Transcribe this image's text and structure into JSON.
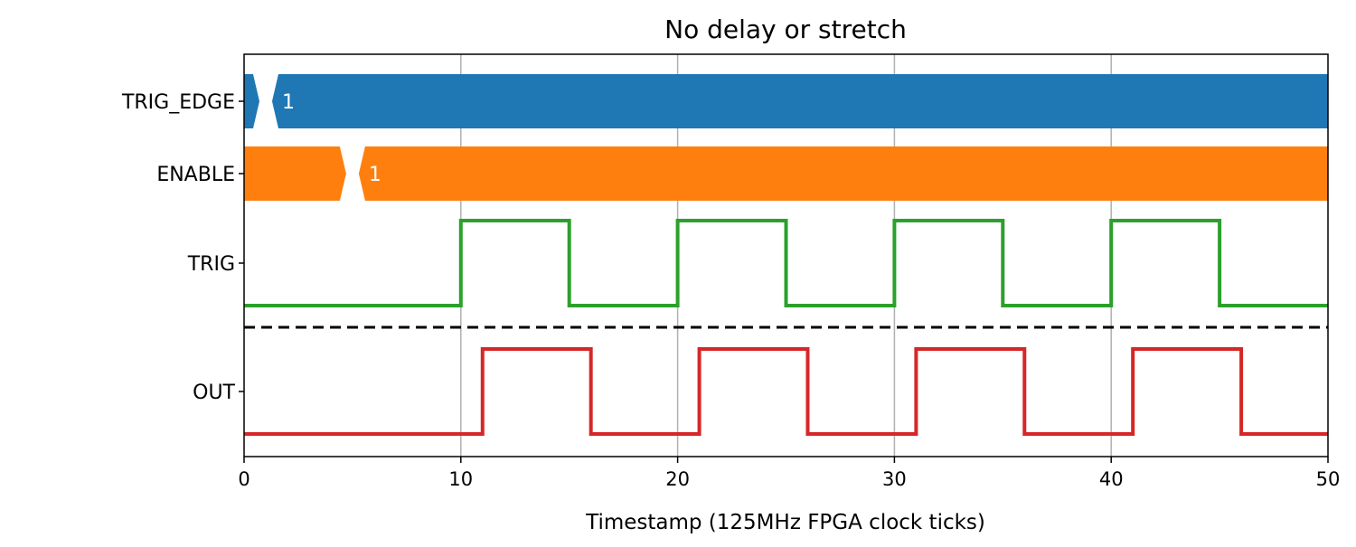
{
  "chart_data": {
    "type": "line",
    "title": "No delay or stretch",
    "xlabel": "Timestamp (125MHz FPGA clock ticks)",
    "ylabel": "",
    "xlim": [
      0,
      50
    ],
    "xticks": [
      0,
      10,
      20,
      30,
      40,
      50
    ],
    "grid": "vertical at x ticks",
    "separator_style": "dashed",
    "separator_after_signal": "TRIG",
    "signals": [
      {
        "name": "TRIG_EDGE",
        "kind": "bus",
        "color": "#1f77b4",
        "segments": [
          {
            "start": 0,
            "end": 1,
            "value": ""
          },
          {
            "start": 1,
            "end": 50,
            "value": "1"
          }
        ]
      },
      {
        "name": "ENABLE",
        "kind": "bus",
        "color": "#ff7f0e",
        "segments": [
          {
            "start": 0,
            "end": 5,
            "value": ""
          },
          {
            "start": 5,
            "end": 50,
            "value": "1"
          }
        ]
      },
      {
        "name": "TRIG",
        "kind": "digital",
        "color": "#2ca02c",
        "x": [
          0,
          10,
          15,
          20,
          25,
          30,
          35,
          40,
          45,
          50
        ],
        "y": [
          0,
          1,
          0,
          1,
          0,
          1,
          0,
          1,
          0,
          0
        ]
      },
      {
        "name": "OUT",
        "kind": "digital",
        "color": "#d62728",
        "x": [
          0,
          11,
          16,
          21,
          26,
          31,
          36,
          41,
          46,
          50
        ],
        "y": [
          0,
          1,
          0,
          1,
          0,
          1,
          0,
          1,
          0,
          0
        ]
      }
    ]
  }
}
